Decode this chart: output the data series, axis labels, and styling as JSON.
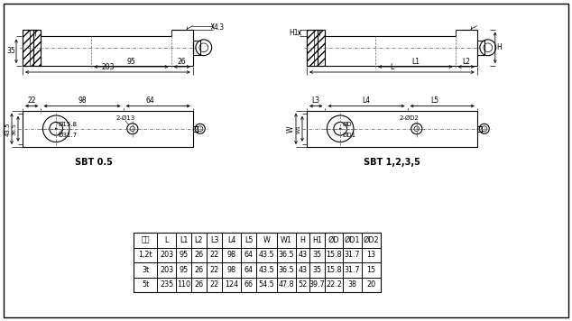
{
  "background_color": "#ffffff",
  "border_color": "#000000",
  "table": {
    "headers": [
      "容量",
      "L",
      "L1",
      "L2",
      "L3",
      "L4",
      "L5",
      "W",
      "W1",
      "H",
      "H1",
      "ØD",
      "ØD1",
      "ØD2"
    ],
    "rows": [
      [
        "1,2t",
        "203",
        "95",
        "26",
        "22",
        "98",
        "64",
        "43.5",
        "36.5",
        "43",
        "35",
        "15.8",
        "31.7",
        "13"
      ],
      [
        "3t",
        "203",
        "95",
        "26",
        "22",
        "98",
        "64",
        "43.5",
        "36.5",
        "43",
        "35",
        "15.8",
        "31.7",
        "15"
      ],
      [
        "5t",
        "235",
        "110",
        "26",
        "22",
        "124",
        "66",
        "54.5",
        "47.8",
        "52",
        "39.7",
        "22.2",
        "38",
        "20"
      ]
    ]
  },
  "label_sbt05": "SBT 0.5",
  "label_sbt125": "SBT 1,2,3,5",
  "line_color": "#000000"
}
